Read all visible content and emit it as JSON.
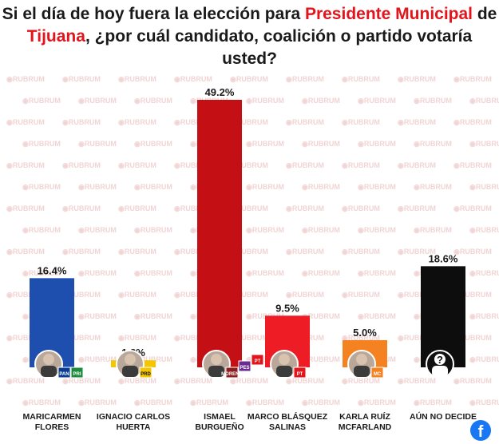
{
  "title": {
    "part1": "Si el día de hoy fuera la elección para ",
    "hl1": "Presidente Municipal",
    "part2": " de ",
    "hl2": "Tijuana",
    "part3": ", ¿por cuál candidato, coalición o partido votaría usted?"
  },
  "watermark": "RUBRUM",
  "chart_data": {
    "type": "bar",
    "title": "Si el día de hoy fuera la elección para Presidente Municipal de Tijuana, ¿por cuál candidato, coalición o partido votaría usted?",
    "ylim": [
      0,
      50
    ],
    "categories": [
      [
        "MARICARMEN",
        "FLORES"
      ],
      [
        "IGNACIO CARLOS",
        "HUERTA"
      ],
      [
        "ISMAEL",
        "BURGUEÑO"
      ],
      [
        "MARCO BLÁSQUEZ",
        "SALINAS"
      ],
      [
        "KARLA RUÍZ",
        "MCFARLAND"
      ],
      [
        "AÚN NO DECIDE"
      ]
    ],
    "values": [
      16.4,
      1.3,
      49.2,
      9.5,
      5.0,
      18.6
    ],
    "value_labels": [
      "16.4%",
      "1.3%",
      "49.2%",
      "9.5%",
      "5.0%",
      "18.6%"
    ],
    "colors": [
      "#1f4fae",
      "#f5c500",
      "#c40f14",
      "#ee1c24",
      "#f58220",
      "#0d0d0d"
    ],
    "party_logos": [
      [
        "PAN",
        "PRI"
      ],
      [
        "PRD"
      ],
      [
        "MORENA",
        "PES",
        "PT"
      ],
      [
        "PT"
      ],
      [
        "MC"
      ],
      []
    ]
  },
  "unknown_symbol": "?",
  "social": {
    "facebook": "f"
  }
}
